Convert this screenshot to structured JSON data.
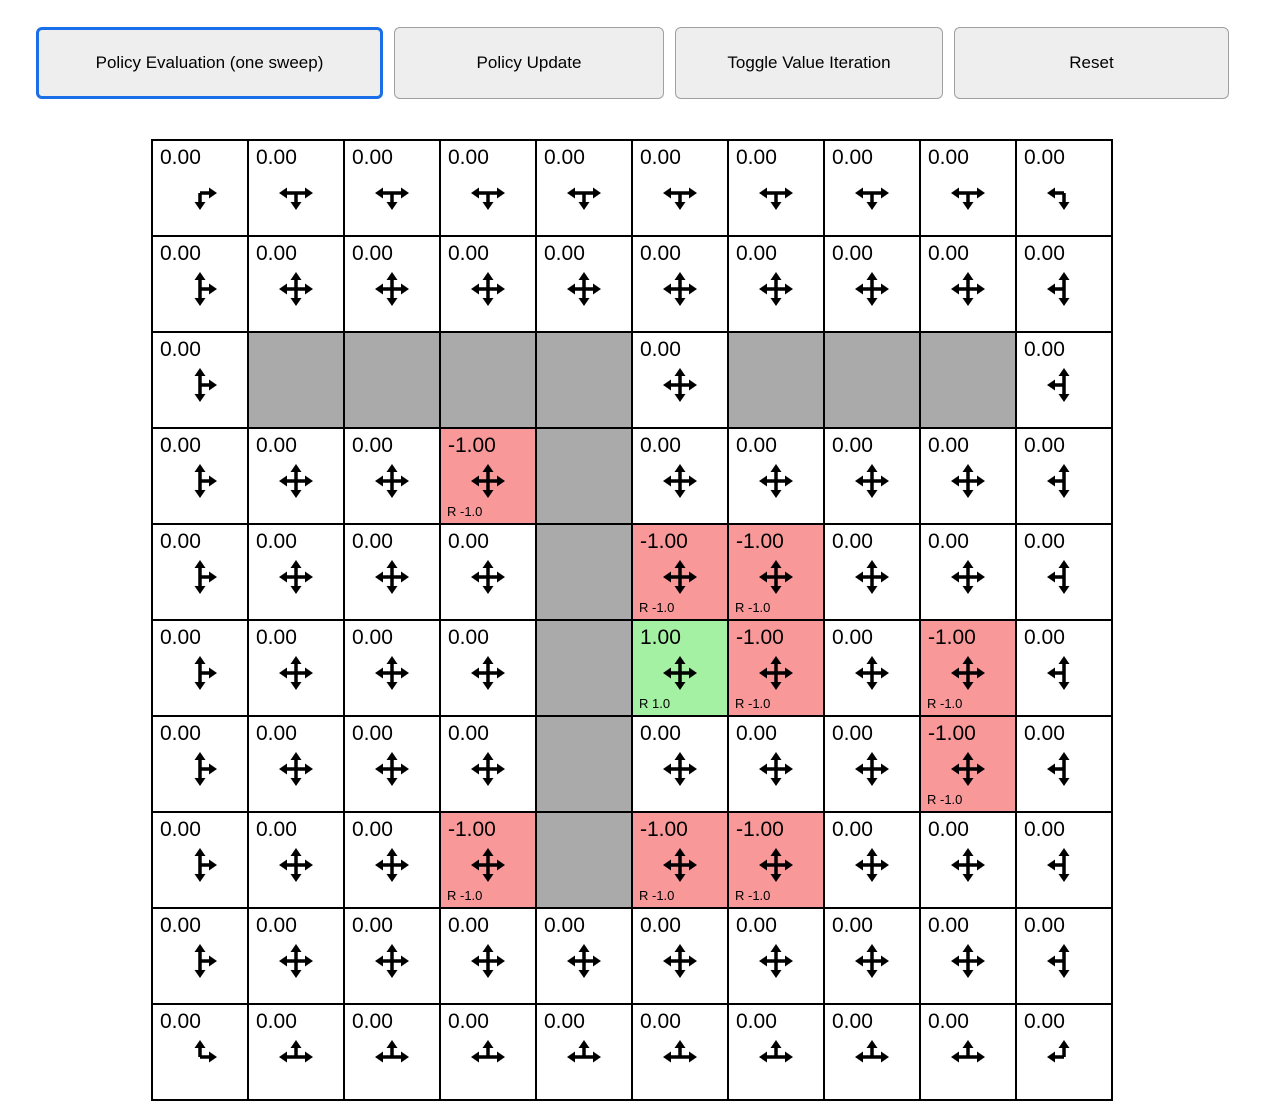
{
  "toolbar": {
    "buttons": [
      {
        "label": "Policy Evaluation (one sweep)",
        "focused": true
      },
      {
        "label": "Policy Update",
        "focused": false
      },
      {
        "label": "Toggle Value Iteration",
        "focused": false
      },
      {
        "label": "Reset",
        "focused": false
      }
    ]
  },
  "colors": {
    "wall": "#AAAAAA",
    "negative": "#F89898",
    "positive": "#A4F1A4",
    "focus_ring": "#1A6FE8",
    "grid_line": "#000000"
  },
  "grid": {
    "rows": 10,
    "cols": 10,
    "cells": [
      [
        {
          "type": "normal",
          "value": "0.00",
          "arrows": [
            "right",
            "down"
          ]
        },
        {
          "type": "normal",
          "value": "0.00",
          "arrows": [
            "left",
            "right",
            "down"
          ]
        },
        {
          "type": "normal",
          "value": "0.00",
          "arrows": [
            "left",
            "right",
            "down"
          ]
        },
        {
          "type": "normal",
          "value": "0.00",
          "arrows": [
            "left",
            "right",
            "down"
          ]
        },
        {
          "type": "normal",
          "value": "0.00",
          "arrows": [
            "left",
            "right",
            "down"
          ]
        },
        {
          "type": "normal",
          "value": "0.00",
          "arrows": [
            "left",
            "right",
            "down"
          ]
        },
        {
          "type": "normal",
          "value": "0.00",
          "arrows": [
            "left",
            "right",
            "down"
          ]
        },
        {
          "type": "normal",
          "value": "0.00",
          "arrows": [
            "left",
            "right",
            "down"
          ]
        },
        {
          "type": "normal",
          "value": "0.00",
          "arrows": [
            "left",
            "right",
            "down"
          ]
        },
        {
          "type": "normal",
          "value": "0.00",
          "arrows": [
            "left",
            "down"
          ]
        }
      ],
      [
        {
          "type": "normal",
          "value": "0.00",
          "arrows": [
            "up",
            "down",
            "right"
          ]
        },
        {
          "type": "normal",
          "value": "0.00",
          "arrows": [
            "up",
            "down",
            "left",
            "right"
          ]
        },
        {
          "type": "normal",
          "value": "0.00",
          "arrows": [
            "up",
            "down",
            "left",
            "right"
          ]
        },
        {
          "type": "normal",
          "value": "0.00",
          "arrows": [
            "up",
            "down",
            "left",
            "right"
          ]
        },
        {
          "type": "normal",
          "value": "0.00",
          "arrows": [
            "up",
            "down",
            "left",
            "right"
          ]
        },
        {
          "type": "normal",
          "value": "0.00",
          "arrows": [
            "up",
            "down",
            "left",
            "right"
          ]
        },
        {
          "type": "normal",
          "value": "0.00",
          "arrows": [
            "up",
            "down",
            "left",
            "right"
          ]
        },
        {
          "type": "normal",
          "value": "0.00",
          "arrows": [
            "up",
            "down",
            "left",
            "right"
          ]
        },
        {
          "type": "normal",
          "value": "0.00",
          "arrows": [
            "up",
            "down",
            "left",
            "right"
          ]
        },
        {
          "type": "normal",
          "value": "0.00",
          "arrows": [
            "up",
            "down",
            "left"
          ]
        }
      ],
      [
        {
          "type": "normal",
          "value": "0.00",
          "arrows": [
            "up",
            "down",
            "right"
          ]
        },
        {
          "type": "wall"
        },
        {
          "type": "wall"
        },
        {
          "type": "wall"
        },
        {
          "type": "wall"
        },
        {
          "type": "normal",
          "value": "0.00",
          "arrows": [
            "up",
            "down",
            "left",
            "right"
          ]
        },
        {
          "type": "wall"
        },
        {
          "type": "wall"
        },
        {
          "type": "wall"
        },
        {
          "type": "normal",
          "value": "0.00",
          "arrows": [
            "up",
            "down",
            "left"
          ]
        }
      ],
      [
        {
          "type": "normal",
          "value": "0.00",
          "arrows": [
            "up",
            "down",
            "right"
          ]
        },
        {
          "type": "normal",
          "value": "0.00",
          "arrows": [
            "up",
            "down",
            "left",
            "right"
          ]
        },
        {
          "type": "normal",
          "value": "0.00",
          "arrows": [
            "up",
            "down",
            "left",
            "right"
          ]
        },
        {
          "type": "negative",
          "value": "-1.00",
          "reward": "R -1.0",
          "arrows": [
            "up",
            "down",
            "left",
            "right"
          ]
        },
        {
          "type": "wall"
        },
        {
          "type": "normal",
          "value": "0.00",
          "arrows": [
            "up",
            "down",
            "left",
            "right"
          ]
        },
        {
          "type": "normal",
          "value": "0.00",
          "arrows": [
            "up",
            "down",
            "left",
            "right"
          ]
        },
        {
          "type": "normal",
          "value": "0.00",
          "arrows": [
            "up",
            "down",
            "left",
            "right"
          ]
        },
        {
          "type": "normal",
          "value": "0.00",
          "arrows": [
            "up",
            "down",
            "left",
            "right"
          ]
        },
        {
          "type": "normal",
          "value": "0.00",
          "arrows": [
            "up",
            "down",
            "left"
          ]
        }
      ],
      [
        {
          "type": "normal",
          "value": "0.00",
          "arrows": [
            "up",
            "down",
            "right"
          ]
        },
        {
          "type": "normal",
          "value": "0.00",
          "arrows": [
            "up",
            "down",
            "left",
            "right"
          ]
        },
        {
          "type": "normal",
          "value": "0.00",
          "arrows": [
            "up",
            "down",
            "left",
            "right"
          ]
        },
        {
          "type": "normal",
          "value": "0.00",
          "arrows": [
            "up",
            "down",
            "left",
            "right"
          ]
        },
        {
          "type": "wall"
        },
        {
          "type": "negative",
          "value": "-1.00",
          "reward": "R -1.0",
          "arrows": [
            "up",
            "down",
            "left",
            "right"
          ]
        },
        {
          "type": "negative",
          "value": "-1.00",
          "reward": "R -1.0",
          "arrows": [
            "up",
            "down",
            "left",
            "right"
          ]
        },
        {
          "type": "normal",
          "value": "0.00",
          "arrows": [
            "up",
            "down",
            "left",
            "right"
          ]
        },
        {
          "type": "normal",
          "value": "0.00",
          "arrows": [
            "up",
            "down",
            "left",
            "right"
          ]
        },
        {
          "type": "normal",
          "value": "0.00",
          "arrows": [
            "up",
            "down",
            "left"
          ]
        }
      ],
      [
        {
          "type": "normal",
          "value": "0.00",
          "arrows": [
            "up",
            "down",
            "right"
          ]
        },
        {
          "type": "normal",
          "value": "0.00",
          "arrows": [
            "up",
            "down",
            "left",
            "right"
          ]
        },
        {
          "type": "normal",
          "value": "0.00",
          "arrows": [
            "up",
            "down",
            "left",
            "right"
          ]
        },
        {
          "type": "normal",
          "value": "0.00",
          "arrows": [
            "up",
            "down",
            "left",
            "right"
          ]
        },
        {
          "type": "wall"
        },
        {
          "type": "positive",
          "value": "1.00",
          "reward": "R 1.0",
          "arrows": [
            "up",
            "down",
            "left",
            "right"
          ]
        },
        {
          "type": "negative",
          "value": "-1.00",
          "reward": "R -1.0",
          "arrows": [
            "up",
            "down",
            "left",
            "right"
          ]
        },
        {
          "type": "normal",
          "value": "0.00",
          "arrows": [
            "up",
            "down",
            "left",
            "right"
          ]
        },
        {
          "type": "negative",
          "value": "-1.00",
          "reward": "R -1.0",
          "arrows": [
            "up",
            "down",
            "left",
            "right"
          ]
        },
        {
          "type": "normal",
          "value": "0.00",
          "arrows": [
            "up",
            "down",
            "left"
          ]
        }
      ],
      [
        {
          "type": "normal",
          "value": "0.00",
          "arrows": [
            "up",
            "down",
            "right"
          ]
        },
        {
          "type": "normal",
          "value": "0.00",
          "arrows": [
            "up",
            "down",
            "left",
            "right"
          ]
        },
        {
          "type": "normal",
          "value": "0.00",
          "arrows": [
            "up",
            "down",
            "left",
            "right"
          ]
        },
        {
          "type": "normal",
          "value": "0.00",
          "arrows": [
            "up",
            "down",
            "left",
            "right"
          ]
        },
        {
          "type": "wall"
        },
        {
          "type": "normal",
          "value": "0.00",
          "arrows": [
            "up",
            "down",
            "left",
            "right"
          ]
        },
        {
          "type": "normal",
          "value": "0.00",
          "arrows": [
            "up",
            "down",
            "left",
            "right"
          ]
        },
        {
          "type": "normal",
          "value": "0.00",
          "arrows": [
            "up",
            "down",
            "left",
            "right"
          ]
        },
        {
          "type": "negative",
          "value": "-1.00",
          "reward": "R -1.0",
          "arrows": [
            "up",
            "down",
            "left",
            "right"
          ]
        },
        {
          "type": "normal",
          "value": "0.00",
          "arrows": [
            "up",
            "down",
            "left"
          ]
        }
      ],
      [
        {
          "type": "normal",
          "value": "0.00",
          "arrows": [
            "up",
            "down",
            "right"
          ]
        },
        {
          "type": "normal",
          "value": "0.00",
          "arrows": [
            "up",
            "down",
            "left",
            "right"
          ]
        },
        {
          "type": "normal",
          "value": "0.00",
          "arrows": [
            "up",
            "down",
            "left",
            "right"
          ]
        },
        {
          "type": "negative",
          "value": "-1.00",
          "reward": "R -1.0",
          "arrows": [
            "up",
            "down",
            "left",
            "right"
          ]
        },
        {
          "type": "wall"
        },
        {
          "type": "negative",
          "value": "-1.00",
          "reward": "R -1.0",
          "arrows": [
            "up",
            "down",
            "left",
            "right"
          ]
        },
        {
          "type": "negative",
          "value": "-1.00",
          "reward": "R -1.0",
          "arrows": [
            "up",
            "down",
            "left",
            "right"
          ]
        },
        {
          "type": "normal",
          "value": "0.00",
          "arrows": [
            "up",
            "down",
            "left",
            "right"
          ]
        },
        {
          "type": "normal",
          "value": "0.00",
          "arrows": [
            "up",
            "down",
            "left",
            "right"
          ]
        },
        {
          "type": "normal",
          "value": "0.00",
          "arrows": [
            "up",
            "down",
            "left"
          ]
        }
      ],
      [
        {
          "type": "normal",
          "value": "0.00",
          "arrows": [
            "up",
            "down",
            "right"
          ]
        },
        {
          "type": "normal",
          "value": "0.00",
          "arrows": [
            "up",
            "down",
            "left",
            "right"
          ]
        },
        {
          "type": "normal",
          "value": "0.00",
          "arrows": [
            "up",
            "down",
            "left",
            "right"
          ]
        },
        {
          "type": "normal",
          "value": "0.00",
          "arrows": [
            "up",
            "down",
            "left",
            "right"
          ]
        },
        {
          "type": "normal",
          "value": "0.00",
          "arrows": [
            "up",
            "down",
            "left",
            "right"
          ]
        },
        {
          "type": "normal",
          "value": "0.00",
          "arrows": [
            "up",
            "down",
            "left",
            "right"
          ]
        },
        {
          "type": "normal",
          "value": "0.00",
          "arrows": [
            "up",
            "down",
            "left",
            "right"
          ]
        },
        {
          "type": "normal",
          "value": "0.00",
          "arrows": [
            "up",
            "down",
            "left",
            "right"
          ]
        },
        {
          "type": "normal",
          "value": "0.00",
          "arrows": [
            "up",
            "down",
            "left",
            "right"
          ]
        },
        {
          "type": "normal",
          "value": "0.00",
          "arrows": [
            "up",
            "down",
            "left"
          ]
        }
      ],
      [
        {
          "type": "normal",
          "value": "0.00",
          "arrows": [
            "up",
            "right"
          ]
        },
        {
          "type": "normal",
          "value": "0.00",
          "arrows": [
            "up",
            "left",
            "right"
          ]
        },
        {
          "type": "normal",
          "value": "0.00",
          "arrows": [
            "up",
            "left",
            "right"
          ]
        },
        {
          "type": "normal",
          "value": "0.00",
          "arrows": [
            "up",
            "left",
            "right"
          ]
        },
        {
          "type": "normal",
          "value": "0.00",
          "arrows": [
            "up",
            "left",
            "right"
          ]
        },
        {
          "type": "normal",
          "value": "0.00",
          "arrows": [
            "up",
            "left",
            "right"
          ]
        },
        {
          "type": "normal",
          "value": "0.00",
          "arrows": [
            "up",
            "left",
            "right"
          ]
        },
        {
          "type": "normal",
          "value": "0.00",
          "arrows": [
            "up",
            "left",
            "right"
          ]
        },
        {
          "type": "normal",
          "value": "0.00",
          "arrows": [
            "up",
            "left",
            "right"
          ]
        },
        {
          "type": "normal",
          "value": "0.00",
          "arrows": [
            "up",
            "left"
          ]
        }
      ]
    ]
  }
}
